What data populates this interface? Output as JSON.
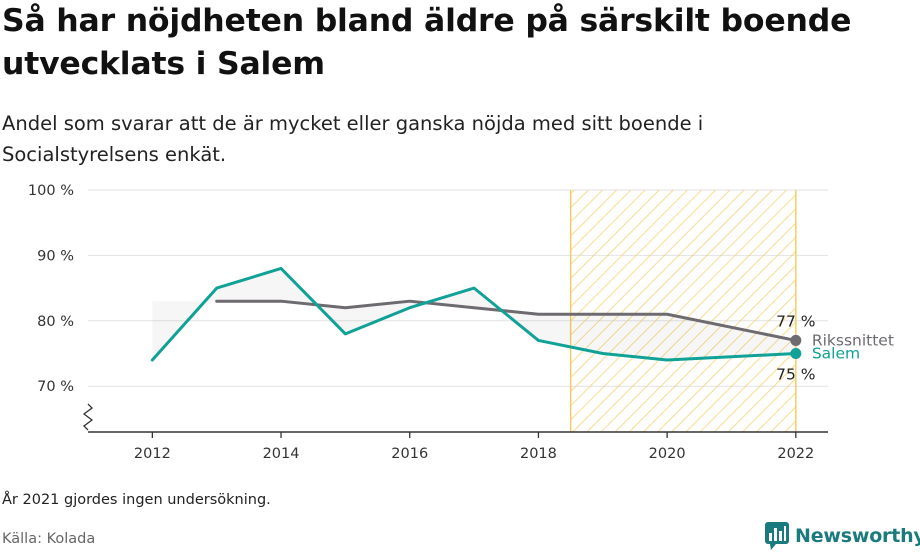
{
  "title": "Så har nöjdheten bland äldre på särskilt boende utvecklats i Salem",
  "subtitle": "Andel som svarar att de är mycket eller ganska nöjda med sitt boende i Socialstyrelsens enkät.",
  "footnote": "År 2021 gjordes ingen undersökning.",
  "source": "Källa: Kolada",
  "brand": "Newsworthy",
  "colors": {
    "salem": "#10a197",
    "average": "#6d6a70",
    "highlight": "#f7c95a",
    "grid": "#e2e2e2",
    "axis": "#333333"
  },
  "chart_data": {
    "type": "line",
    "x_ticks": [
      2012,
      2014,
      2016,
      2018,
      2020,
      2022
    ],
    "x_tick_labels": [
      "2012",
      "2014",
      "2016",
      "2018",
      "2020",
      "2022"
    ],
    "y_ticks": [
      70,
      80,
      90,
      100
    ],
    "y_tick_labels": [
      "70 %",
      "80 %",
      "90 %",
      "100 %"
    ],
    "xlim": [
      2011,
      2022.5
    ],
    "ylim": [
      63,
      100
    ],
    "axis_break": true,
    "grid": true,
    "highlight_range": [
      2018.5,
      2022
    ],
    "series": [
      {
        "name": "Rikssnittet",
        "key": "average",
        "x": [
          2013,
          2014,
          2015,
          2016,
          2017,
          2018,
          2019,
          2020,
          2022
        ],
        "values": [
          83,
          83,
          82,
          83,
          82,
          81,
          81,
          81,
          77
        ],
        "end_label": "77 %"
      },
      {
        "name": "Salem",
        "key": "salem",
        "x": [
          2012,
          2013,
          2014,
          2015,
          2016,
          2017,
          2018,
          2019,
          2020,
          2022
        ],
        "values": [
          74,
          85,
          88,
          78,
          82,
          85,
          77,
          75,
          74,
          75
        ],
        "end_label": "75 %"
      }
    ]
  }
}
